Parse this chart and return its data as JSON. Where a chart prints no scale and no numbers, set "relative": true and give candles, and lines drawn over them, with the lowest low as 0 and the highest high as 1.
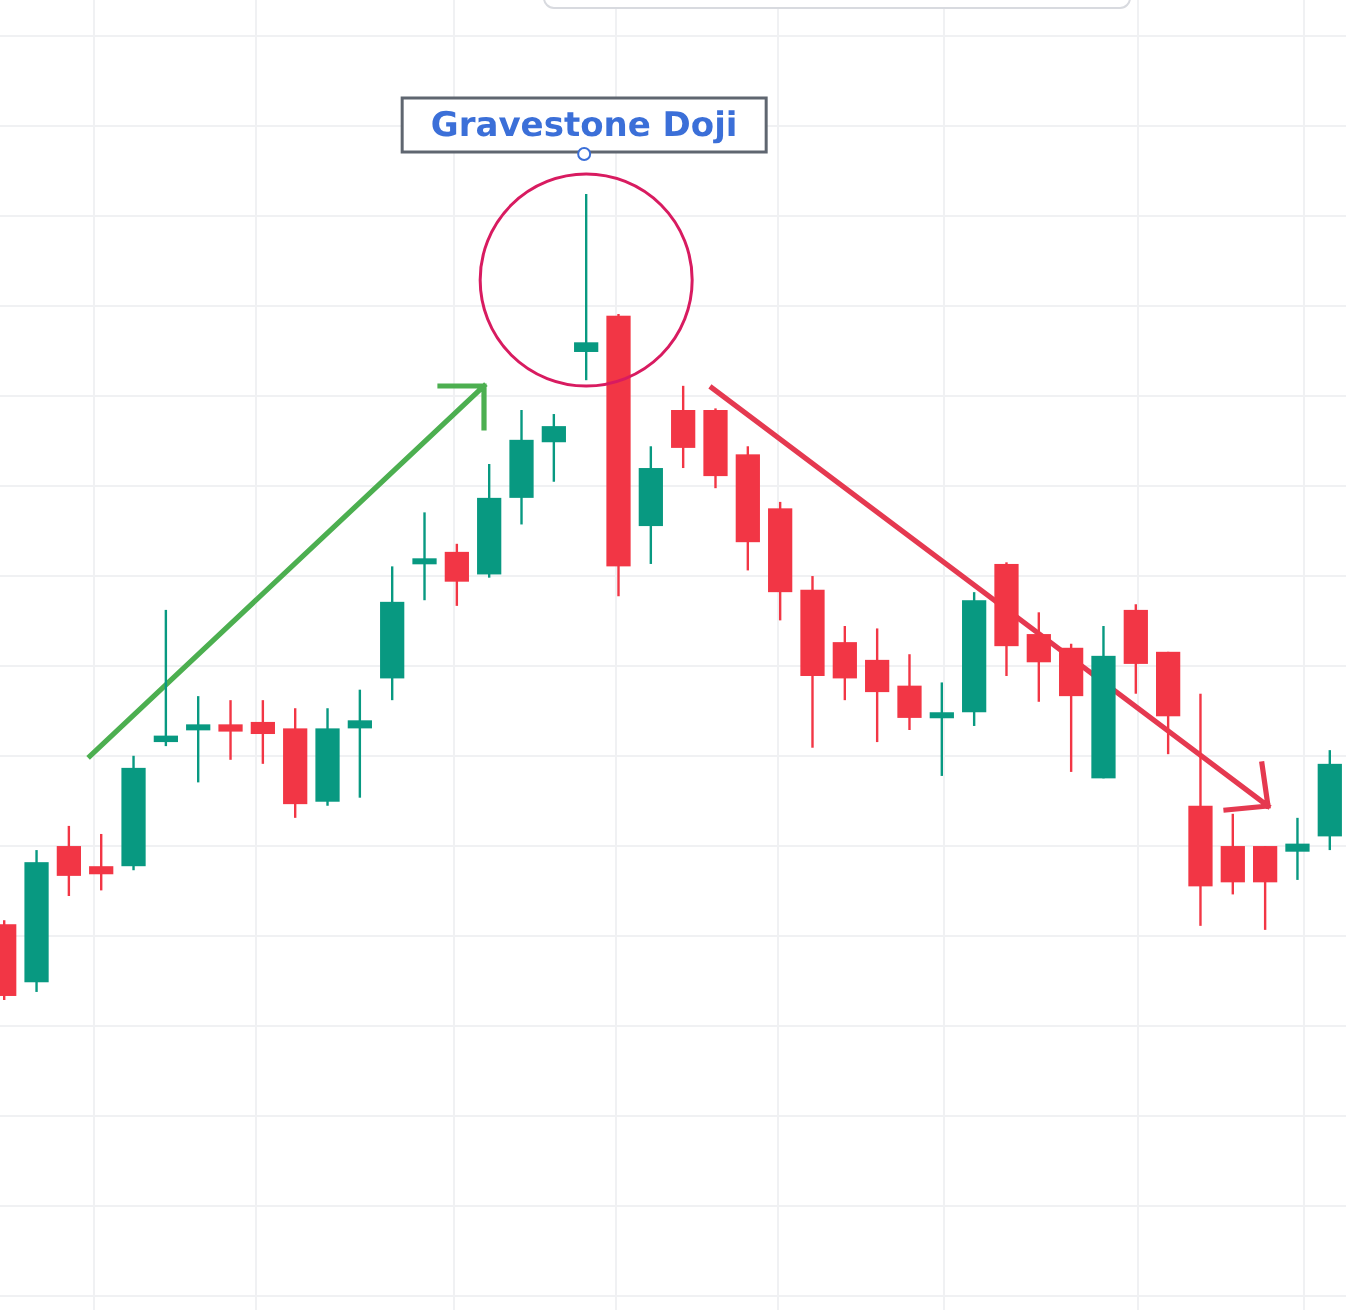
{
  "chart_data": {
    "type": "candlestick",
    "relative": true,
    "grid": true,
    "annotations": [
      "Gravestone Doji"
    ],
    "categories": [
      null,
      null,
      null,
      null,
      null,
      null,
      null,
      null,
      null,
      null,
      null,
      null,
      null,
      null,
      null,
      null,
      null,
      null,
      null,
      null,
      null,
      null,
      null,
      null,
      null,
      null,
      null,
      null,
      null,
      null,
      null,
      null,
      null,
      null,
      null,
      null,
      null,
      null,
      null,
      null,
      null,
      null
    ],
    "ohlc": [
      [
        0.094,
        0.099,
        0,
        0.005
      ],
      [
        0.022,
        0.186,
        0.01,
        0.171
      ],
      [
        0.191,
        0.216,
        0.129,
        0.154
      ],
      [
        0.166,
        0.206,
        0.136,
        0.156
      ],
      [
        0.166,
        0.303,
        0.161,
        0.288
      ],
      [
        0.32,
        0.484,
        0.315,
        0.328
      ],
      [
        0.335,
        0.377,
        0.27,
        0.342
      ],
      [
        0.342,
        0.372,
        0.298,
        0.333
      ],
      [
        0.345,
        0.372,
        0.293,
        0.33
      ],
      [
        0.337,
        0.362,
        0.226,
        0.243
      ],
      [
        0.246,
        0.362,
        0.241,
        0.337
      ],
      [
        0.337,
        0.385,
        0.251,
        0.347
      ],
      [
        0.399,
        0.538,
        0.372,
        0.494
      ],
      [
        0.541,
        0.605,
        0.496,
        0.548
      ],
      [
        0.556,
        0.566,
        0.489,
        0.519
      ],
      [
        0.528,
        0.665,
        0.524,
        0.623
      ],
      [
        0.623,
        0.732,
        0.59,
        0.695
      ],
      [
        0.692,
        0.727,
        0.643,
        0.712
      ],
      [
        0.804,
        1,
        0.769,
        0.816
      ],
      [
        0.849,
        0.851,
        0.501,
        0.538
      ],
      [
        0.588,
        0.687,
        0.541,
        0.66
      ],
      [
        0.732,
        0.762,
        0.66,
        0.685
      ],
      [
        0.732,
        0.734,
        0.635,
        0.65
      ],
      [
        0.677,
        0.687,
        0.533,
        0.568
      ],
      [
        0.61,
        0.618,
        0.471,
        0.506
      ],
      [
        0.509,
        0.526,
        0.313,
        0.402
      ],
      [
        0.444,
        0.464,
        0.372,
        0.399
      ],
      [
        0.422,
        0.461,
        0.32,
        0.382
      ],
      [
        0.39,
        0.429,
        0.335,
        0.35
      ],
      [
        0.352,
        0.394,
        0.278,
        0.357
      ],
      [
        0.357,
        0.506,
        0.34,
        0.496
      ],
      [
        0.541,
        0.543,
        0.402,
        0.439
      ],
      [
        0.454,
        0.481,
        0.37,
        0.419
      ],
      [
        0.437,
        0.442,
        0.283,
        0.377
      ],
      [
        0.275,
        0.464,
        0.275,
        0.427
      ],
      [
        0.484,
        0.491,
        0.38,
        0.417
      ],
      [
        0.432,
        0.432,
        0.305,
        0.352
      ],
      [
        0.241,
        0.38,
        0.092,
        0.141
      ],
      [
        0.191,
        0.231,
        0.131,
        0.146
      ],
      [
        0.191,
        0.191,
        0.087,
        0.146
      ],
      [
        0.184,
        0.226,
        0.149,
        0.194
      ],
      [
        0.203,
        0.31,
        0.186,
        0.293
      ]
    ],
    "colors": [
      "#f23645",
      "#089981",
      "#f23645",
      "#f23645",
      "#089981",
      "#089981",
      "#089981",
      "#f23645",
      "#f23645",
      "#f23645",
      "#089981",
      "#089981",
      "#089981",
      "#089981",
      "#f23645",
      "#089981",
      "#089981",
      "#089981",
      "#089981",
      "#f23645",
      "#089981",
      "#f23645",
      "#f23645",
      "#f23645",
      "#f23645",
      "#f23645",
      "#f23645",
      "#f23645",
      "#f23645",
      "#089981",
      "#089981",
      "#f23645",
      "#f23645",
      "#f23645",
      "#089981",
      "#f23645",
      "#f23645",
      "#f23645",
      "#f23645",
      "#f23645",
      "#089981",
      "#089981"
    ]
  }
}
